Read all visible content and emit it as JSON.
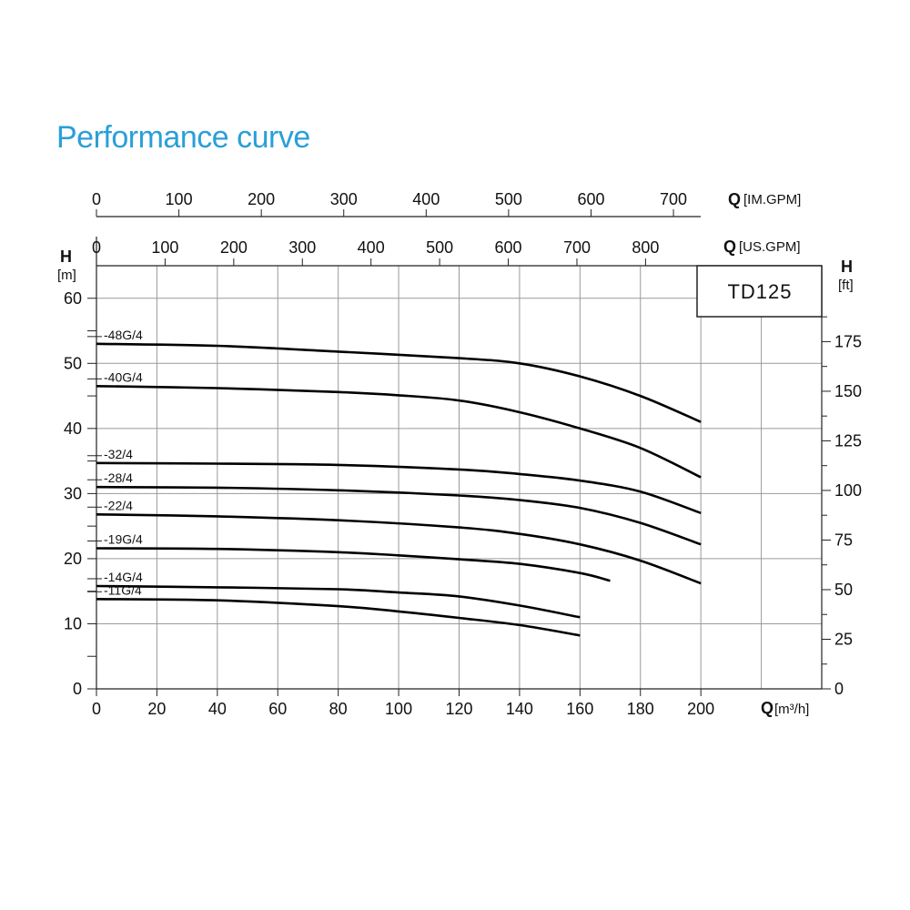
{
  "title": "Performance curve",
  "chart_data": {
    "type": "line",
    "model": "TD125",
    "x_axis": {
      "label": "Q",
      "unit": "[m³/h]",
      "range": [
        0,
        240
      ],
      "ticks": [
        0,
        20,
        40,
        60,
        80,
        100,
        120,
        140,
        160,
        180,
        200
      ]
    },
    "x_axis_us_gpm": {
      "label": "Q",
      "unit": "[US.GPM]",
      "ticks": [
        0,
        100,
        200,
        300,
        400,
        500,
        600,
        700,
        800
      ]
    },
    "x_axis_im_gpm": {
      "label": "Q",
      "unit": "[IM.GPM]",
      "ticks": [
        0,
        100,
        200,
        300,
        400,
        500,
        600,
        700
      ]
    },
    "y_axis_left": {
      "label": "H",
      "unit": "[m]",
      "range": [
        0,
        65
      ],
      "ticks": [
        0,
        10,
        20,
        30,
        40,
        50,
        60
      ]
    },
    "y_axis_right": {
      "label": "H",
      "unit": "[ft]",
      "ticks": [
        0,
        25,
        50,
        75,
        100,
        125,
        150,
        175
      ]
    },
    "grid": true,
    "series": [
      {
        "name": "-48G/4",
        "x": [
          0,
          40,
          80,
          120,
          140,
          160,
          180,
          200
        ],
        "y": [
          53,
          52.7,
          51.8,
          50.8,
          50,
          48,
          45,
          41
        ]
      },
      {
        "name": "-40G/4",
        "x": [
          0,
          40,
          80,
          100,
          120,
          140,
          160,
          180,
          200
        ],
        "y": [
          46.5,
          46.2,
          45.6,
          45.1,
          44.3,
          42.5,
          40,
          37,
          32.5
        ]
      },
      {
        "name": "-32/4",
        "x": [
          0,
          40,
          80,
          120,
          140,
          160,
          180,
          200
        ],
        "y": [
          34.7,
          34.6,
          34.4,
          33.7,
          33,
          32,
          30.3,
          27
        ]
      },
      {
        "name": "-28/4",
        "x": [
          0,
          40,
          80,
          120,
          140,
          160,
          180,
          200
        ],
        "y": [
          31,
          30.9,
          30.5,
          29.7,
          29,
          27.8,
          25.5,
          22.2
        ]
      },
      {
        "name": "-22/4",
        "x": [
          0,
          40,
          80,
          120,
          140,
          160,
          180,
          200
        ],
        "y": [
          26.8,
          26.5,
          25.9,
          24.8,
          23.8,
          22.2,
          19.7,
          16.2
        ]
      },
      {
        "name": "-19G/4",
        "x": [
          0,
          40,
          80,
          100,
          120,
          140,
          160,
          170
        ],
        "y": [
          21.6,
          21.5,
          21,
          20.5,
          19.9,
          19.2,
          17.8,
          16.6
        ]
      },
      {
        "name": "-14G/4",
        "x": [
          0,
          40,
          80,
          100,
          120,
          140,
          160
        ],
        "y": [
          15.8,
          15.6,
          15.3,
          14.8,
          14.2,
          12.8,
          11
        ]
      },
      {
        "name": "-11G/4",
        "x": [
          0,
          40,
          80,
          100,
          120,
          140,
          160
        ],
        "y": [
          13.8,
          13.6,
          12.7,
          11.9,
          10.9,
          9.8,
          8.2
        ]
      }
    ]
  }
}
